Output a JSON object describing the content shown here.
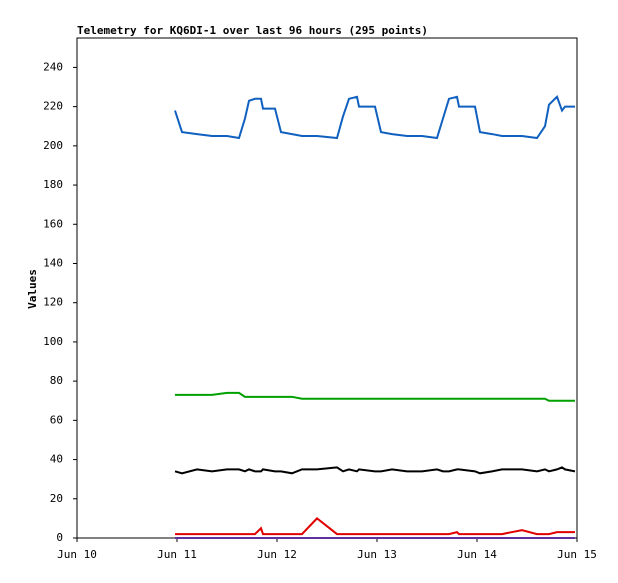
{
  "chart_data": {
    "type": "line",
    "title": "Telemetry for KQ6DI-1 over last 96 hours (295 points)",
    "y_label": "Values",
    "x": [
      10.98,
      11.05,
      11.2,
      11.35,
      11.5,
      11.62,
      11.68,
      11.72,
      11.78,
      11.84,
      11.86,
      11.98,
      12.04,
      12.15,
      12.25,
      12.4,
      12.6,
      12.66,
      12.72,
      12.8,
      12.82,
      12.98,
      13.04,
      13.15,
      13.3,
      13.45,
      13.6,
      13.66,
      13.72,
      13.8,
      13.82,
      13.98,
      14.03,
      14.15,
      14.25,
      14.45,
      14.6,
      14.68,
      14.72,
      14.8,
      14.85,
      14.88,
      14.98
    ],
    "series": [
      {
        "color": "#1060c0",
        "values": [
          218,
          207,
          206,
          205,
          205,
          204,
          214,
          223,
          224,
          224,
          219,
          219,
          207,
          206,
          205,
          205,
          204,
          215,
          224,
          225,
          220,
          220,
          207,
          206,
          205,
          205,
          204,
          214,
          224,
          225,
          220,
          220,
          207,
          206,
          205,
          205,
          204,
          210,
          221,
          225,
          218,
          220,
          220
        ]
      },
      {
        "color": "#00a000",
        "values": [
          73,
          73,
          73,
          73,
          74,
          74,
          72,
          72,
          72,
          72,
          72,
          72,
          72,
          72,
          71,
          71,
          71,
          71,
          71,
          71,
          71,
          71,
          71,
          71,
          71,
          71,
          71,
          71,
          71,
          71,
          71,
          71,
          71,
          71,
          71,
          71,
          71,
          71,
          70,
          70,
          70,
          70,
          70
        ]
      },
      {
        "color": "#000000",
        "values": [
          34,
          33,
          35,
          34,
          35,
          35,
          34,
          35,
          34,
          34,
          35,
          34,
          34,
          33,
          35,
          35,
          36,
          34,
          35,
          34,
          35,
          34,
          34,
          35,
          34,
          34,
          35,
          34,
          34,
          35,
          35,
          34,
          33,
          34,
          35,
          35,
          34,
          35,
          34,
          35,
          36,
          35,
          34
        ]
      },
      {
        "color": "#e00000",
        "values": [
          2,
          2,
          2,
          2,
          2,
          2,
          2,
          2,
          2,
          5,
          2,
          2,
          2,
          2,
          2,
          10,
          2,
          2,
          2,
          2,
          2,
          2,
          2,
          2,
          2,
          2,
          2,
          2,
          2,
          3,
          2,
          2,
          2,
          2,
          2,
          4,
          2,
          2,
          2,
          3,
          3,
          3,
          3
        ]
      },
      {
        "color": "#6030a0",
        "values": [
          0,
          0,
          0,
          0,
          0,
          0,
          0,
          0,
          0,
          0,
          0,
          0,
          0,
          0,
          0,
          0,
          0,
          0,
          0,
          0,
          0,
          0,
          0,
          0,
          0,
          0,
          0,
          0,
          0,
          0,
          0,
          0,
          0,
          0,
          0,
          0,
          0,
          0,
          0,
          0,
          0,
          0,
          0
        ]
      }
    ],
    "xlim": [
      10,
      15
    ],
    "xticks": [
      {
        "value": 10,
        "label": "Jun 10"
      },
      {
        "value": 11,
        "label": "Jun 11"
      },
      {
        "value": 12,
        "label": "Jun 12"
      },
      {
        "value": 13,
        "label": "Jun 13"
      },
      {
        "value": 14,
        "label": "Jun 14"
      },
      {
        "value": 15,
        "label": "Jun 15"
      }
    ],
    "ylim": [
      0,
      255
    ],
    "yticks": [
      0,
      20,
      40,
      60,
      80,
      100,
      120,
      140,
      160,
      180,
      200,
      220,
      240
    ],
    "grid": false
  }
}
